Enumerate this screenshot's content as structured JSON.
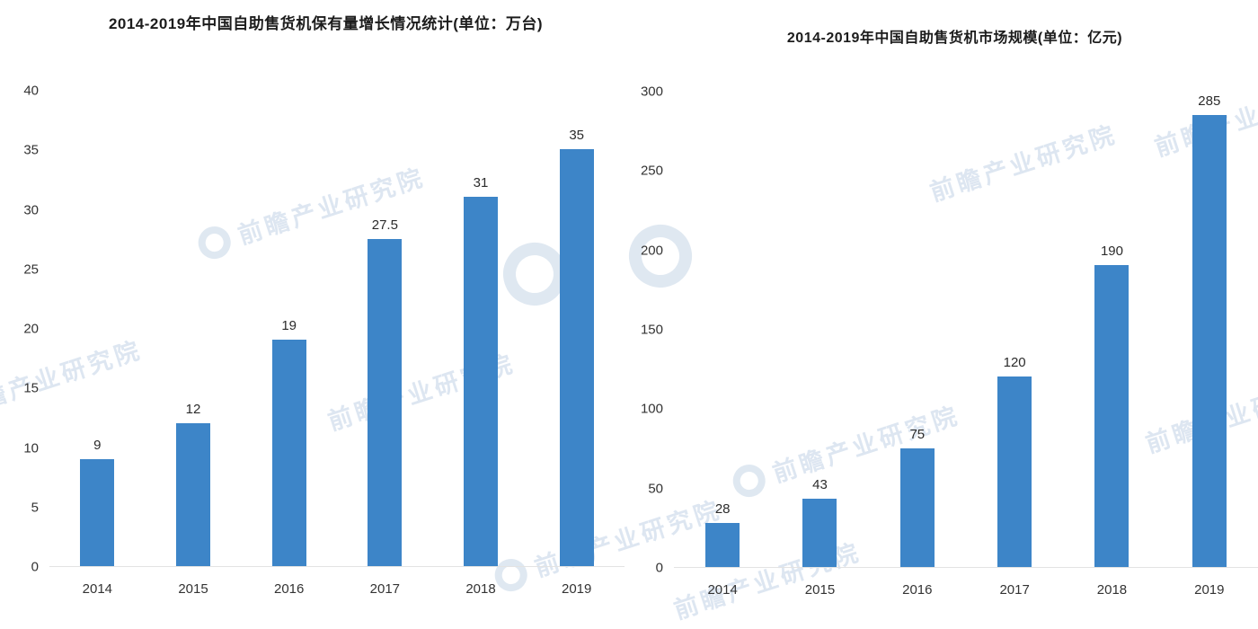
{
  "watermark": "前瞻产业研究院",
  "chart_data": [
    {
      "type": "bar",
      "title": "2014-2019年中国自助售货机保有量增长情况统计(单位：万台)",
      "categories": [
        "2014",
        "2015",
        "2016",
        "2017",
        "2018",
        "2019"
      ],
      "values": [
        9,
        12,
        19,
        27.5,
        31,
        35
      ],
      "value_labels": [
        "9",
        "12",
        "19",
        "27.5",
        "31",
        "35"
      ],
      "yticks": [
        0,
        5,
        10,
        15,
        20,
        25,
        30,
        35,
        40
      ],
      "ylim": [
        0,
        40
      ],
      "xlabel": "",
      "ylabel": "",
      "grid": false,
      "legend": "none",
      "bar_color": "#3d85c8"
    },
    {
      "type": "bar",
      "title": "2014-2019年中国自助售货机市场规模(单位：亿元)",
      "categories": [
        "2014",
        "2015",
        "2016",
        "2017",
        "2018",
        "2019"
      ],
      "values": [
        28,
        43,
        75,
        120,
        190,
        285
      ],
      "value_labels": [
        "28",
        "43",
        "75",
        "120",
        "190",
        "285"
      ],
      "yticks": [
        0,
        50,
        100,
        150,
        200,
        250,
        300
      ],
      "ylim": [
        0,
        300
      ],
      "xlabel": "",
      "ylabel": "",
      "grid": false,
      "legend": "none",
      "bar_color": "#3d85c8"
    }
  ]
}
